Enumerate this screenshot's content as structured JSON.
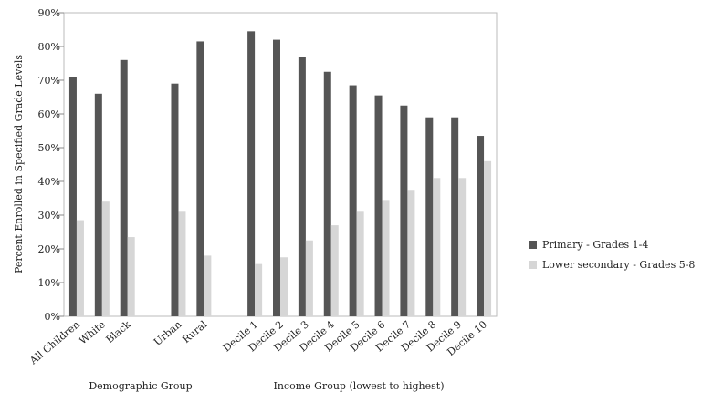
{
  "chart_data": {
    "type": "bar",
    "title": "",
    "ylabel": "Percent Enrolled in Specified Grade Levels",
    "ylim": [
      0,
      90
    ],
    "yticks": [
      0,
      10,
      20,
      30,
      40,
      50,
      60,
      70,
      80,
      90
    ],
    "ytick_labels": [
      "0%",
      "10%",
      "20%",
      "30%",
      "40%",
      "50%",
      "60%",
      "70%",
      "80%",
      "90%"
    ],
    "grid": false,
    "legend_position": "right",
    "categories": [
      "All Children",
      "White",
      "Black",
      "",
      "Urban",
      "Rural",
      "",
      "Decile 1",
      "Decile 2",
      "Decile 3",
      "Decile 4",
      "Decile 5",
      "Decile 6",
      "Decile 7",
      "Decile 8",
      "Decile 9",
      "Decile 10"
    ],
    "series": [
      {
        "name": "Primary - Grades 1-4",
        "color": "#555555",
        "values": [
          71,
          66,
          76,
          null,
          69,
          81.5,
          null,
          84.5,
          82,
          77,
          72.5,
          68.5,
          65.5,
          62.5,
          59,
          59,
          53.5
        ]
      },
      {
        "name": "Lower secondary - Grades 5-8",
        "color": "#d6d6d6",
        "values": [
          28.5,
          34,
          23.5,
          null,
          31,
          18,
          null,
          15.5,
          17.5,
          22.5,
          27,
          31,
          34.5,
          37.5,
          41,
          41,
          46
        ]
      }
    ],
    "group_labels": [
      "Demographic Group",
      "Income Group (lowest to highest)"
    ]
  }
}
